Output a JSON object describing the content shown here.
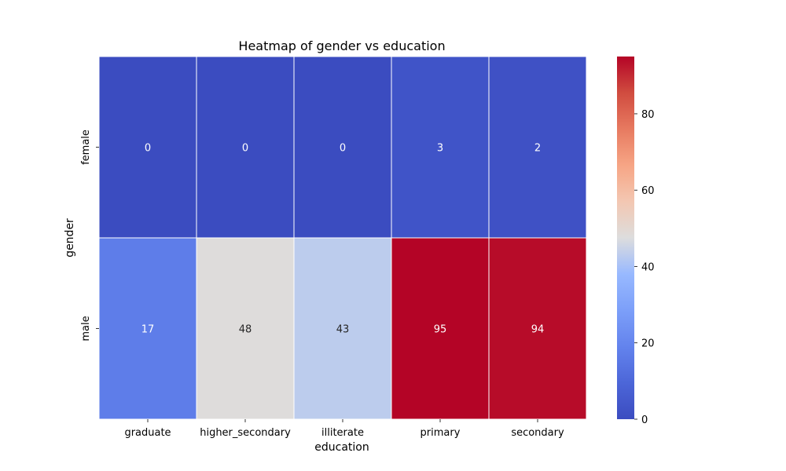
{
  "chart_data": {
    "type": "heatmap",
    "title": "Heatmap of gender vs education",
    "xlabel": "education",
    "ylabel": "gender",
    "x_categories": [
      "graduate",
      "higher_secondary",
      "illiterate",
      "primary",
      "secondary"
    ],
    "y_categories": [
      "female",
      "male"
    ],
    "values": [
      [
        0,
        0,
        0,
        3,
        2
      ],
      [
        17,
        48,
        43,
        95,
        94
      ]
    ],
    "colormap": "coolwarm",
    "vmin": 0,
    "vmax": 95,
    "colorbar_ticks": [
      0,
      20,
      40,
      60,
      80
    ],
    "annotations": true
  }
}
